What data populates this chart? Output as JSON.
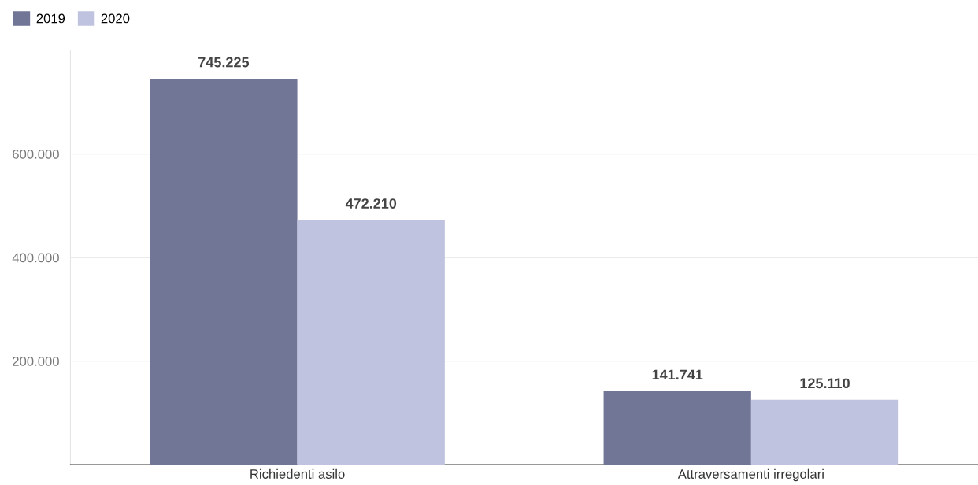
{
  "chart_data": {
    "type": "bar",
    "categories": [
      "Richiedenti asilo",
      "Attraversamenti irregolari"
    ],
    "series": [
      {
        "name": "2019",
        "color": "#717596",
        "values": [
          745225,
          141741
        ],
        "value_labels": [
          "745.225",
          "141.741"
        ]
      },
      {
        "name": "2020",
        "color": "#c0c3e0",
        "values": [
          472210,
          125110
        ],
        "value_labels": [
          "472.210",
          "125.110"
        ]
      }
    ],
    "ylim": [
      0,
      800000
    ],
    "yticks": [
      {
        "value": 200000,
        "label": "200.000"
      },
      {
        "value": 400000,
        "label": "400.000"
      },
      {
        "value": 600000,
        "label": "600.000"
      }
    ],
    "grid": "y",
    "legend": "top left"
  }
}
